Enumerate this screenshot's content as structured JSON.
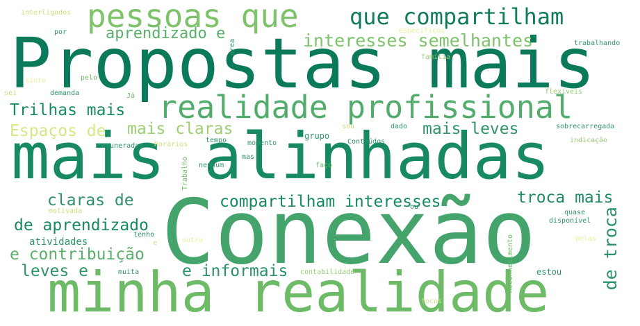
{
  "colors": {
    "background": "#ffffff",
    "dark_green": "#0b7a5a",
    "teal": "#178a64",
    "mid_green": "#44a46b",
    "light_green": "#6dbb67",
    "pale_green": "#97cc73",
    "yellow_green": "#c8e27d",
    "pale_yellow": "#e8f09a"
  },
  "words": [
    {
      "text": "Propostas mais",
      "color": "#0b7a5a"
    },
    {
      "text": "mais alinhadas",
      "color": "#178a64"
    },
    {
      "text": "Conexão",
      "color": "#44a46b"
    },
    {
      "text": "minha realidade",
      "color": "#6dbb67"
    },
    {
      "text": "pessoas que",
      "color": "#7ec26a"
    },
    {
      "text": "que compartilham",
      "color": "#107c5c"
    },
    {
      "text": "realidade profissional",
      "color": "#52ac6c"
    },
    {
      "text": "aprendizado e",
      "color": "#5aaf6a"
    },
    {
      "text": "interesses semelhantes",
      "color": "#7ec26a"
    },
    {
      "text": "Trilhas mais",
      "color": "#178a64"
    },
    {
      "text": "Espaços de",
      "color": "#d3e785"
    },
    {
      "text": "mais claras",
      "color": "#9ccf72"
    },
    {
      "text": "mais leves",
      "color": "#2f9468"
    },
    {
      "text": "claras de",
      "color": "#2a9168"
    },
    {
      "text": "compartilham interesses",
      "color": "#178a64"
    },
    {
      "text": "troca mais",
      "color": "#1f8c66"
    },
    {
      "text": "de aprendizado",
      "color": "#1a8a65"
    },
    {
      "text": "de troca",
      "color": "#2a9168"
    },
    {
      "text": "e contribuição",
      "color": "#5aaf6a"
    },
    {
      "text": "atividades",
      "color": "#2f9468"
    },
    {
      "text": "leves e",
      "color": "#2f9468"
    },
    {
      "text": "e informais",
      "color": "#2a9168"
    },
    {
      "text": "interligados",
      "color": "#c8e27d"
    },
    {
      "text": "por",
      "color": "#2f9468"
    },
    {
      "text": "específicos",
      "color": "#e8f09a"
    },
    {
      "text": "trabalhando",
      "color": "#2f9468"
    },
    {
      "text": "área",
      "color": "#2f9468"
    },
    {
      "text": "família",
      "color": "#97cc73"
    },
    {
      "text": "sinto",
      "color": "#e8f09a"
    },
    {
      "text": "pelo",
      "color": "#6dbb67"
    },
    {
      "text": "sei",
      "color": "#c8e27d"
    },
    {
      "text": "demanda",
      "color": "#2f9468"
    },
    {
      "text": "Já",
      "color": "#6dbb67"
    },
    {
      "text": "flexíveis",
      "color": "#97cc73"
    },
    {
      "text": "sou",
      "color": "#c8e27d"
    },
    {
      "text": "dado",
      "color": "#2f9468"
    },
    {
      "text": "grupo",
      "color": "#2f9468"
    },
    {
      "text": "sobrecarregada",
      "color": "#2f9468"
    },
    {
      "text": "remuneradas",
      "color": "#2f9468"
    },
    {
      "text": "Horários",
      "color": "#c8e27d"
    },
    {
      "text": "tempo",
      "color": "#2f9468"
    },
    {
      "text": "momento",
      "color": "#2f9468"
    },
    {
      "text": "Conteúdos",
      "color": "#2f9468"
    },
    {
      "text": "indicação",
      "color": "#97cc73"
    },
    {
      "text": "Trabalho",
      "color": "#6dbb67"
    },
    {
      "text": "nenhum",
      "color": "#2f9468"
    },
    {
      "text": "mas",
      "color": "#2f9468"
    },
    {
      "text": "faço",
      "color": "#6dbb67"
    },
    {
      "text": "motivada",
      "color": "#c8e27d"
    },
    {
      "text": "tenho",
      "color": "#2f9468"
    },
    {
      "text": "e",
      "color": "#c8e27d"
    },
    {
      "text": "outra",
      "color": "#e8f09a"
    },
    {
      "text": "ou",
      "color": "#2f9468"
    },
    {
      "text": "quase",
      "color": "#2f9468"
    },
    {
      "text": "disponível",
      "color": "#2f9468"
    },
    {
      "text": "Reconhecimento",
      "color": "#6dbb67"
    },
    {
      "text": "pelas",
      "color": "#e8f09a"
    },
    {
      "text": "muita",
      "color": "#2f9468"
    },
    {
      "text": "contabilidade",
      "color": "#97cc73"
    },
    {
      "text": "estou",
      "color": "#2f9468"
    },
    {
      "text": "focos",
      "color": "#c8e27d"
    }
  ]
}
